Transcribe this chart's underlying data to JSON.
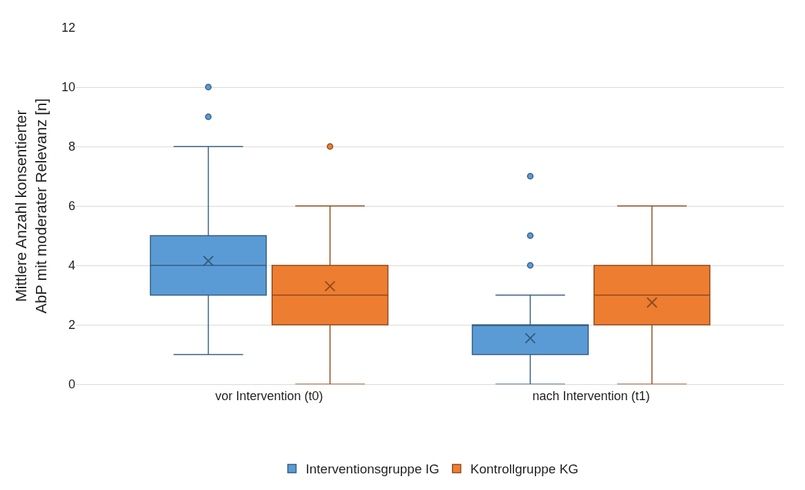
{
  "chart_data": {
    "type": "box",
    "ylabel": "Mittlere Anzahl konsentierter\nAbP mit moderater Relevanz [n]",
    "categories": [
      "vor Intervention (t0)",
      "nach Intervention (t1)"
    ],
    "series": [
      {
        "name": "Interventionsgruppe IG",
        "color": "#5b9bd5",
        "boxes": [
          {
            "low": 1,
            "q1": 3,
            "median": 4,
            "q3": 5,
            "high": 8,
            "mean": 4.15,
            "outliers": [
              9,
              10
            ]
          },
          {
            "low": 0,
            "q1": 1,
            "median": 2,
            "q3": 2,
            "high": 3,
            "mean": 1.55,
            "outliers": [
              4,
              5,
              7
            ]
          }
        ]
      },
      {
        "name": "Kontrollgruppe KG",
        "color": "#ed7d31",
        "boxes": [
          {
            "low": 0,
            "q1": 2,
            "median": 3,
            "q3": 4,
            "high": 6,
            "mean": 3.3,
            "outliers": [
              8
            ]
          },
          {
            "low": 0,
            "q1": 2,
            "median": 3,
            "q3": 4,
            "high": 6,
            "mean": 2.75
          }
        ]
      }
    ],
    "ylim": [
      0,
      12
    ],
    "yticks": [
      0,
      2,
      4,
      6,
      8,
      10,
      12
    ],
    "grid": "y",
    "legend": "bottom"
  }
}
